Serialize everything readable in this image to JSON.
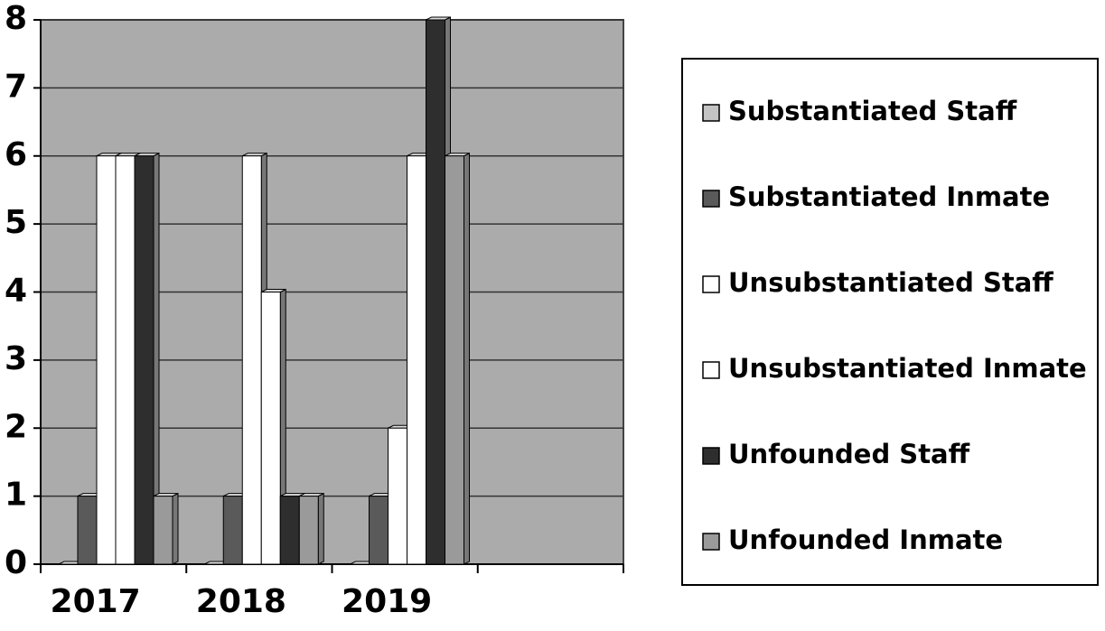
{
  "chart_data": {
    "type": "bar",
    "categories": [
      "2017",
      "2018",
      "2019",
      null
    ],
    "series": [
      {
        "name": "Substantiated Staff",
        "color": "#c4c4c4",
        "values": [
          0,
          0,
          0,
          null
        ]
      },
      {
        "name": "Substantiated Inmate",
        "color": "#5a5a5a",
        "values": [
          1,
          1,
          1,
          null
        ]
      },
      {
        "name": "Unsubstantiated Staff",
        "color": "#ffffff",
        "values": [
          6,
          6,
          2,
          null
        ]
      },
      {
        "name": "Unsubstantiated Inmate",
        "color": "#ffffff",
        "values": [
          6,
          4,
          6,
          null
        ]
      },
      {
        "name": "Unfounded Staff",
        "color": "#2e2e2e",
        "values": [
          6,
          1,
          8,
          null
        ]
      },
      {
        "name": "Unfounded Inmate",
        "color": "#9a9a9a",
        "values": [
          1,
          1,
          6,
          null
        ]
      }
    ],
    "ylim": [
      0,
      8
    ],
    "yticks": [
      0,
      1,
      2,
      3,
      4,
      5,
      6,
      7,
      8
    ],
    "grid": true,
    "legend": "right"
  }
}
